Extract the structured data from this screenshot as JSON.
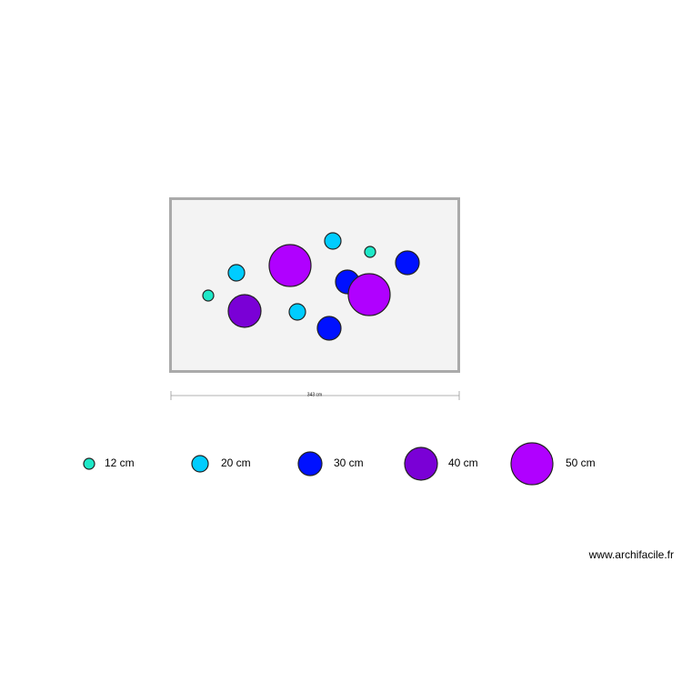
{
  "plan": {
    "dimension_label": "343 cm"
  },
  "legend": [
    {
      "label": "12 cm"
    },
    {
      "label": "20 cm"
    },
    {
      "label": "30 cm"
    },
    {
      "label": "40 cm"
    },
    {
      "label": "50 cm"
    }
  ],
  "footer": "www.archifacile.fr"
}
